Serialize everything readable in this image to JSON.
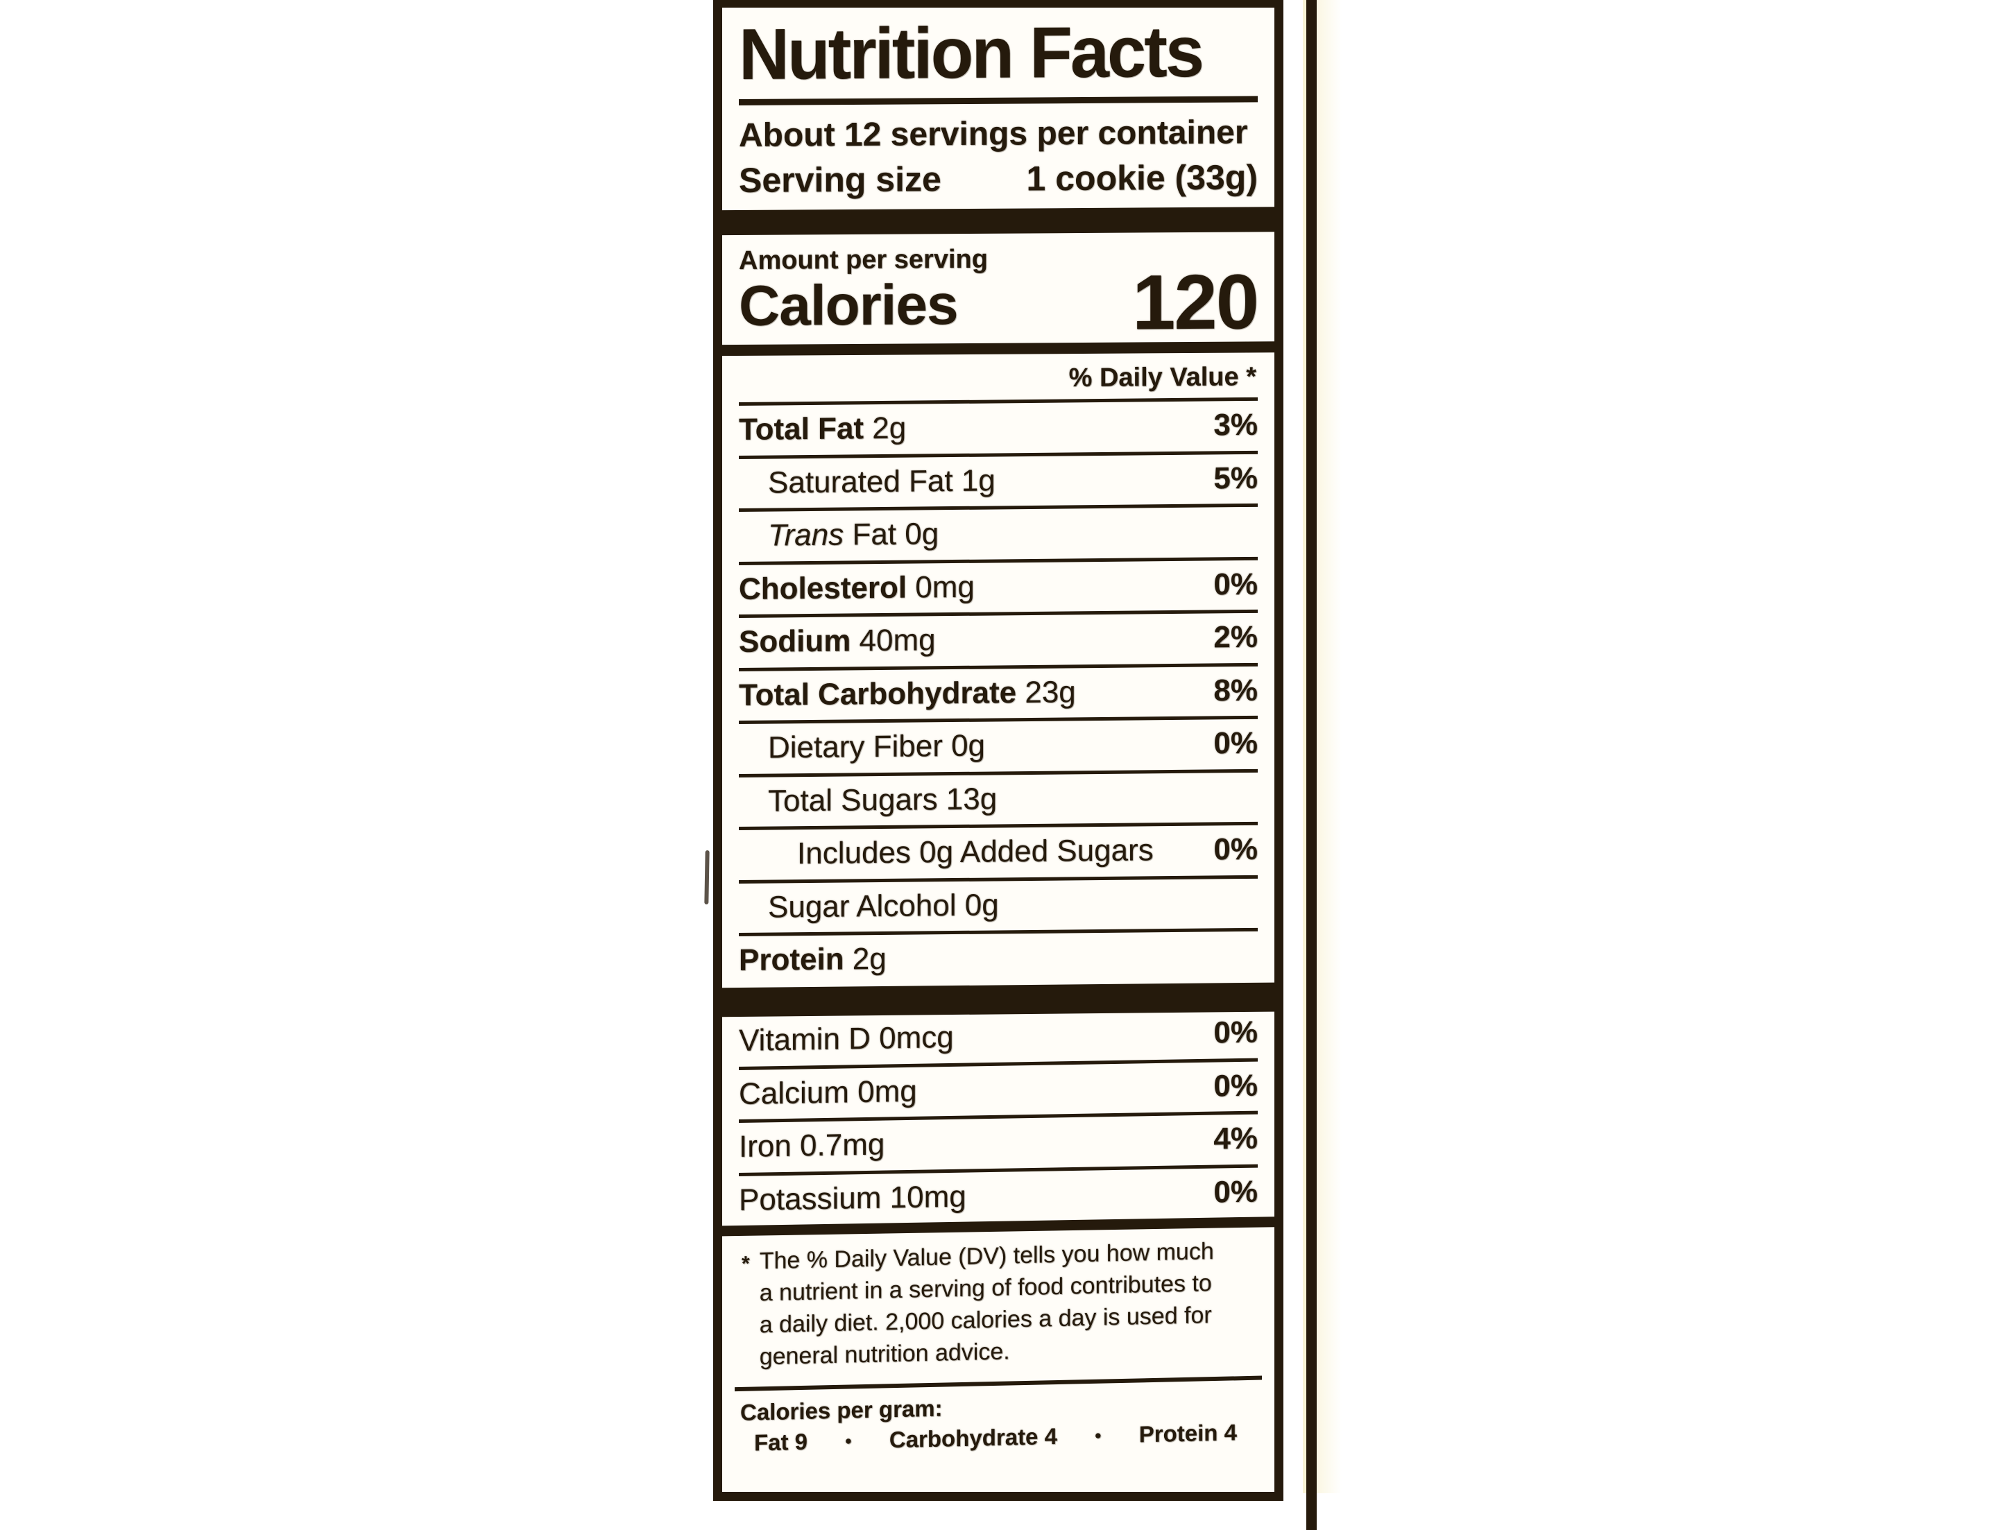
{
  "label": {
    "title": "Nutrition Facts",
    "servings_per_container": "About 12 servings per container",
    "serving_size_label": "Serving size",
    "serving_size_value": "1 cookie (33g)",
    "amount_per_serving": "Amount per serving",
    "calories_label": "Calories",
    "calories_value": "120",
    "daily_value_header": "% Daily Value *",
    "nutrients": [
      {
        "name": "Total Fat",
        "amount": "2g",
        "dv": "3%",
        "bold": true,
        "indent": 0
      },
      {
        "name": "Saturated Fat",
        "amount": "1g",
        "dv": "5%",
        "bold": false,
        "indent": 1
      },
      {
        "prefix_italic": "Trans",
        "name": "Fat",
        "amount": "0g",
        "dv": "",
        "bold": false,
        "indent": 1
      },
      {
        "name": "Cholesterol",
        "amount": "0mg",
        "dv": "0%",
        "bold": true,
        "indent": 0
      },
      {
        "name": "Sodium",
        "amount": "40mg",
        "dv": "2%",
        "bold": true,
        "indent": 0
      },
      {
        "name": "Total Carbohydrate",
        "amount": "23g",
        "dv": "8%",
        "bold": true,
        "indent": 0
      },
      {
        "name": "Dietary Fiber",
        "amount": "0g",
        "dv": "0%",
        "bold": false,
        "indent": 1
      },
      {
        "name": "Total Sugars",
        "amount": "13g",
        "dv": "",
        "bold": false,
        "indent": 1
      },
      {
        "name": "Includes 0g Added Sugars",
        "amount": "",
        "dv": "0%",
        "bold": false,
        "indent": 2
      },
      {
        "name": "Sugar Alcohol",
        "amount": "0g",
        "dv": "",
        "bold": false,
        "indent": 1
      },
      {
        "name": "Protein",
        "amount": "2g",
        "dv": "",
        "bold": true,
        "indent": 0
      }
    ],
    "micronutrients": [
      {
        "name": "Vitamin D",
        "amount": "0mcg",
        "dv": "0%"
      },
      {
        "name": "Calcium",
        "amount": "0mg",
        "dv": "0%"
      },
      {
        "name": "Iron",
        "amount": "0.7mg",
        "dv": "4%"
      },
      {
        "name": "Potassium",
        "amount": "10mg",
        "dv": "0%"
      }
    ],
    "footnote_marker": "*",
    "footnote": "The % Daily Value (DV) tells you how much a nutrient in a serving of food contributes to a daily diet. 2,000 calories a day is used for general nutrition advice.",
    "calories_per_gram": {
      "label": "Calories per gram:",
      "separator": "•",
      "items": [
        "Fat 9",
        "Carbohydrate 4",
        "Protein 4"
      ]
    }
  },
  "colors": {
    "ink": "#251a0c",
    "paper": "#fffdf8",
    "page_background": "#ffffff"
  }
}
